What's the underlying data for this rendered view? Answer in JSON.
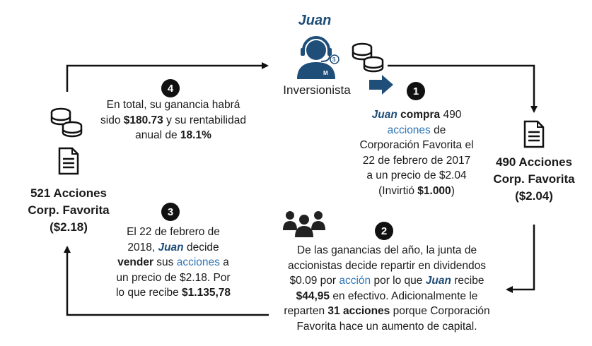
{
  "investor": {
    "name": "Juan",
    "label": "Inversionista"
  },
  "left_box": {
    "line1": "521 Acciones",
    "line2": "Corp. Favorita",
    "price": "($2.18)"
  },
  "right_box": {
    "line1": "490 Acciones",
    "line2": "Corp. Favorita",
    "price": "($2.04)"
  },
  "steps": [
    {
      "number": "1",
      "text": {
        "juan": "Juan",
        "compra": "compra",
        "a": "490",
        "acciones": "acciones",
        "b": "de",
        "c": "Corporación Favorita el",
        "d": "22 de febrero de 2017",
        "e": "a un precio de $2.04",
        "f": "(Invirtió",
        "amount": "$1.000",
        "g": ")"
      }
    },
    {
      "number": "2",
      "text": {
        "a": "De las ganancias del año, la junta de",
        "b": "accionistas decide repartir en dividendos",
        "c": "$0.09 por",
        "accion": "acción",
        "d": "por lo que",
        "juan": "Juan",
        "e": "recibe",
        "amount": "$44,95",
        "f": "en efectivo. Adicionalmente le",
        "g": "reparten",
        "shares": "31 acciones",
        "h": "porque Corporación",
        "i": "Favorita hace un aumento de capital."
      }
    },
    {
      "number": "3",
      "text": {
        "a": "El 22 de febrero de",
        "b": "2018,",
        "juan": "Juan",
        "c": "decide",
        "vender": "vender",
        "d": "sus",
        "acciones": "acciones",
        "e": "a",
        "f": "un precio de $2.18. Por",
        "g": "lo que recibe",
        "amount": "$1.135,78"
      }
    },
    {
      "number": "4",
      "text": {
        "a": "En total, su ganancia habrá",
        "b": "sido",
        "gain": "$180.73",
        "c": "y su rentabilidad",
        "d": "anual de",
        "rate": "18.1%"
      }
    }
  ]
}
